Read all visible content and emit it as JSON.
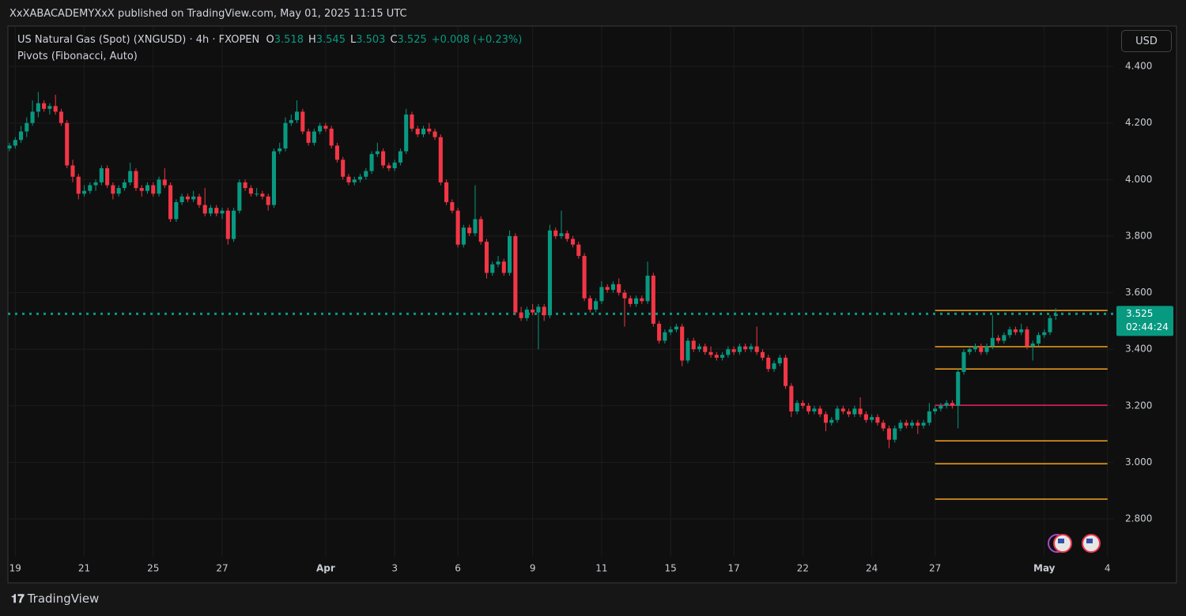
{
  "header": {
    "published": "XxXABACADEMYXxX published on TradingView.com, May 01, 2025 11:15 UTC",
    "logo": "TradingView"
  },
  "chart_data": {
    "type": "candlestick",
    "symbol": "US Natural Gas (Spot) (XNGUSD) · 4h · FXOPEN",
    "indicator": "Pivots (Fibonacci, Auto)",
    "ohlc_labels": [
      "O",
      "H",
      "L",
      "C"
    ],
    "change": "+0.008 (+0.23%)",
    "currency": "USD",
    "countdown": "02:44:24",
    "up_color": "#089981",
    "down_color": "#f23645",
    "grid": true,
    "xlim": [
      0,
      192
    ],
    "ylim": [
      2.666,
      4.54
    ],
    "yticks": [
      {
        "value": 4.4,
        "label": "4.400"
      },
      {
        "value": 4.2,
        "label": "4.200"
      },
      {
        "value": 4.0,
        "label": "4.000"
      },
      {
        "value": 3.8,
        "label": "3.800"
      },
      {
        "value": 3.6,
        "label": "3.600"
      },
      {
        "value": 3.4,
        "label": "3.400"
      },
      {
        "value": 3.2,
        "label": "3.200"
      },
      {
        "value": 3.0,
        "label": "3.000"
      },
      {
        "value": 2.8,
        "label": "2.800"
      }
    ],
    "xticks": [
      {
        "value": 1,
        "label": "19"
      },
      {
        "value": 13,
        "label": "21"
      },
      {
        "value": 25,
        "label": "25"
      },
      {
        "value": 37,
        "label": "27"
      },
      {
        "value": 55,
        "label": "Apr"
      },
      {
        "value": 67,
        "label": "3"
      },
      {
        "value": 78,
        "label": "6"
      },
      {
        "value": 91,
        "label": "9"
      },
      {
        "value": 103,
        "label": "11"
      },
      {
        "value": 115,
        "label": "15"
      },
      {
        "value": 126,
        "label": "17"
      },
      {
        "value": 138,
        "label": "22"
      },
      {
        "value": 150,
        "label": "24"
      },
      {
        "value": 161,
        "label": "27"
      },
      {
        "value": 180,
        "label": "May"
      },
      {
        "value": 191,
        "label": "4"
      }
    ],
    "pivots": {
      "start": 161,
      "end": 191,
      "levels": [
        3.537,
        3.409,
        3.33,
        3.202,
        3.076,
        2.995,
        2.87
      ],
      "colors": [
        "#f7a21b",
        "#f7a21b",
        "#f7a21b",
        "#e91e63",
        "#f7a21b",
        "#f7a21b",
        "#f7a21b"
      ]
    },
    "candles": [
      [
        4.11,
        4.13,
        4.1,
        4.12
      ],
      [
        4.12,
        4.15,
        4.11,
        4.14
      ],
      [
        4.14,
        4.19,
        4.13,
        4.17
      ],
      [
        4.17,
        4.22,
        4.15,
        4.2
      ],
      [
        4.2,
        4.28,
        4.19,
        4.24
      ],
      [
        4.24,
        4.31,
        4.22,
        4.27
      ],
      [
        4.27,
        4.28,
        4.24,
        4.25
      ],
      [
        4.25,
        4.27,
        4.23,
        4.26
      ],
      [
        4.26,
        4.3,
        4.23,
        4.24
      ],
      [
        4.24,
        4.25,
        4.19,
        4.2
      ],
      [
        4.2,
        4.21,
        4.04,
        4.05
      ],
      [
        4.05,
        4.07,
        3.99,
        4.01
      ],
      [
        4.01,
        4.02,
        3.93,
        3.95
      ],
      [
        3.95,
        3.98,
        3.94,
        3.96
      ],
      [
        3.96,
        3.99,
        3.95,
        3.98
      ],
      [
        3.98,
        4.0,
        3.96,
        3.99
      ],
      [
        3.99,
        4.05,
        3.98,
        4.04
      ],
      [
        4.04,
        4.05,
        3.97,
        3.98
      ],
      [
        3.98,
        3.99,
        3.93,
        3.95
      ],
      [
        3.95,
        3.98,
        3.94,
        3.97
      ],
      [
        3.97,
        4.0,
        3.96,
        3.99
      ],
      [
        3.99,
        4.06,
        3.98,
        4.03
      ],
      [
        4.03,
        4.04,
        3.96,
        3.97
      ],
      [
        3.97,
        3.98,
        3.94,
        3.96
      ],
      [
        3.96,
        3.99,
        3.95,
        3.98
      ],
      [
        3.98,
        3.99,
        3.94,
        3.95
      ],
      [
        3.95,
        4.01,
        3.94,
        4.0
      ],
      [
        4.0,
        4.04,
        3.97,
        3.98
      ],
      [
        3.98,
        3.99,
        3.85,
        3.86
      ],
      [
        3.86,
        3.93,
        3.85,
        3.92
      ],
      [
        3.92,
        3.95,
        3.91,
        3.94
      ],
      [
        3.94,
        3.95,
        3.92,
        3.93
      ],
      [
        3.93,
        3.96,
        3.92,
        3.94
      ],
      [
        3.94,
        3.95,
        3.9,
        3.91
      ],
      [
        3.91,
        3.97,
        3.87,
        3.88
      ],
      [
        3.88,
        3.91,
        3.87,
        3.9
      ],
      [
        3.9,
        3.91,
        3.87,
        3.88
      ],
      [
        3.88,
        3.9,
        3.86,
        3.89
      ],
      [
        3.89,
        3.9,
        3.77,
        3.79
      ],
      [
        3.79,
        3.9,
        3.78,
        3.89
      ],
      [
        3.89,
        4.0,
        3.88,
        3.99
      ],
      [
        3.99,
        4.0,
        3.96,
        3.97
      ],
      [
        3.97,
        3.98,
        3.94,
        3.95
      ],
      [
        3.95,
        3.97,
        3.94,
        3.95
      ],
      [
        3.95,
        3.96,
        3.93,
        3.94
      ],
      [
        3.94,
        3.95,
        3.89,
        3.91
      ],
      [
        3.91,
        4.11,
        3.9,
        4.1
      ],
      [
        4.1,
        4.13,
        4.09,
        4.11
      ],
      [
        4.11,
        4.22,
        4.1,
        4.2
      ],
      [
        4.2,
        4.23,
        4.19,
        4.21
      ],
      [
        4.21,
        4.28,
        4.2,
        4.24
      ],
      [
        4.24,
        4.25,
        4.16,
        4.17
      ],
      [
        4.17,
        4.18,
        4.12,
        4.13
      ],
      [
        4.13,
        4.18,
        4.12,
        4.17
      ],
      [
        4.17,
        4.2,
        4.16,
        4.19
      ],
      [
        4.19,
        4.2,
        4.17,
        4.18
      ],
      [
        4.18,
        4.19,
        4.11,
        4.12
      ],
      [
        4.12,
        4.13,
        4.06,
        4.07
      ],
      [
        4.07,
        4.08,
        4.0,
        4.01
      ],
      [
        4.01,
        4.02,
        3.98,
        3.99
      ],
      [
        3.99,
        4.01,
        3.98,
        4.0
      ],
      [
        4.0,
        4.02,
        3.99,
        4.01
      ],
      [
        4.01,
        4.04,
        4.0,
        4.03
      ],
      [
        4.03,
        4.1,
        4.02,
        4.09
      ],
      [
        4.09,
        4.13,
        4.08,
        4.1
      ],
      [
        4.1,
        4.11,
        4.04,
        4.05
      ],
      [
        4.05,
        4.06,
        4.03,
        4.04
      ],
      [
        4.04,
        4.07,
        4.03,
        4.06
      ],
      [
        4.06,
        4.11,
        4.05,
        4.1
      ],
      [
        4.1,
        4.25,
        4.09,
        4.23
      ],
      [
        4.23,
        4.24,
        4.17,
        4.18
      ],
      [
        4.18,
        4.19,
        4.15,
        4.16
      ],
      [
        4.16,
        4.19,
        4.15,
        4.18
      ],
      [
        4.18,
        4.2,
        4.16,
        4.17
      ],
      [
        4.17,
        4.18,
        4.14,
        4.15
      ],
      [
        4.15,
        4.16,
        3.98,
        3.99
      ],
      [
        3.99,
        4.0,
        3.91,
        3.92
      ],
      [
        3.92,
        3.93,
        3.88,
        3.89
      ],
      [
        3.89,
        3.9,
        3.76,
        3.77
      ],
      [
        3.77,
        3.84,
        3.76,
        3.83
      ],
      [
        3.83,
        3.84,
        3.8,
        3.81
      ],
      [
        3.81,
        3.98,
        3.8,
        3.86
      ],
      [
        3.86,
        3.87,
        3.77,
        3.78
      ],
      [
        3.78,
        3.79,
        3.65,
        3.67
      ],
      [
        3.67,
        3.71,
        3.66,
        3.7
      ],
      [
        3.7,
        3.73,
        3.69,
        3.71
      ],
      [
        3.71,
        3.72,
        3.66,
        3.67
      ],
      [
        3.67,
        3.82,
        3.66,
        3.8
      ],
      [
        3.8,
        3.81,
        3.52,
        3.53
      ],
      [
        3.53,
        3.55,
        3.5,
        3.51
      ],
      [
        3.51,
        3.55,
        3.5,
        3.54
      ],
      [
        3.54,
        3.56,
        3.52,
        3.53
      ],
      [
        3.53,
        3.56,
        3.4,
        3.55
      ],
      [
        3.55,
        3.56,
        3.5,
        3.52
      ],
      [
        3.52,
        3.84,
        3.51,
        3.82
      ],
      [
        3.82,
        3.83,
        3.79,
        3.8
      ],
      [
        3.8,
        3.89,
        3.79,
        3.81
      ],
      [
        3.81,
        3.82,
        3.78,
        3.79
      ],
      [
        3.79,
        3.8,
        3.76,
        3.77
      ],
      [
        3.77,
        3.78,
        3.72,
        3.73
      ],
      [
        3.73,
        3.74,
        3.57,
        3.58
      ],
      [
        3.58,
        3.59,
        3.53,
        3.54
      ],
      [
        3.54,
        3.58,
        3.53,
        3.57
      ],
      [
        3.57,
        3.64,
        3.56,
        3.62
      ],
      [
        3.62,
        3.63,
        3.6,
        3.61
      ],
      [
        3.61,
        3.64,
        3.6,
        3.63
      ],
      [
        3.63,
        3.65,
        3.59,
        3.6
      ],
      [
        3.6,
        3.61,
        3.48,
        3.58
      ],
      [
        3.58,
        3.59,
        3.55,
        3.56
      ],
      [
        3.56,
        3.59,
        3.55,
        3.58
      ],
      [
        3.58,
        3.59,
        3.56,
        3.57
      ],
      [
        3.57,
        3.71,
        3.56,
        3.66
      ],
      [
        3.66,
        3.67,
        3.48,
        3.49
      ],
      [
        3.49,
        3.5,
        3.42,
        3.43
      ],
      [
        3.43,
        3.47,
        3.42,
        3.46
      ],
      [
        3.46,
        3.48,
        3.45,
        3.47
      ],
      [
        3.47,
        3.49,
        3.46,
        3.48
      ],
      [
        3.48,
        3.49,
        3.34,
        3.36
      ],
      [
        3.36,
        3.44,
        3.35,
        3.43
      ],
      [
        3.43,
        3.44,
        3.39,
        3.4
      ],
      [
        3.4,
        3.42,
        3.39,
        3.41
      ],
      [
        3.41,
        3.42,
        3.38,
        3.39
      ],
      [
        3.39,
        3.41,
        3.37,
        3.38
      ],
      [
        3.38,
        3.39,
        3.36,
        3.37
      ],
      [
        3.37,
        3.39,
        3.36,
        3.38
      ],
      [
        3.38,
        3.41,
        3.37,
        3.4
      ],
      [
        3.4,
        3.41,
        3.38,
        3.39
      ],
      [
        3.39,
        3.42,
        3.38,
        3.41
      ],
      [
        3.41,
        3.42,
        3.39,
        3.4
      ],
      [
        3.4,
        3.42,
        3.39,
        3.41
      ],
      [
        3.41,
        3.48,
        3.38,
        3.39
      ],
      [
        3.39,
        3.4,
        3.36,
        3.37
      ],
      [
        3.37,
        3.38,
        3.32,
        3.33
      ],
      [
        3.33,
        3.36,
        3.32,
        3.35
      ],
      [
        3.35,
        3.38,
        3.34,
        3.37
      ],
      [
        3.37,
        3.38,
        3.26,
        3.27
      ],
      [
        3.27,
        3.28,
        3.16,
        3.18
      ],
      [
        3.18,
        3.22,
        3.17,
        3.21
      ],
      [
        3.21,
        3.22,
        3.19,
        3.2
      ],
      [
        3.2,
        3.21,
        3.17,
        3.18
      ],
      [
        3.18,
        3.2,
        3.17,
        3.19
      ],
      [
        3.19,
        3.2,
        3.16,
        3.17
      ],
      [
        3.17,
        3.18,
        3.11,
        3.14
      ],
      [
        3.14,
        3.16,
        3.13,
        3.15
      ],
      [
        3.15,
        3.2,
        3.14,
        3.19
      ],
      [
        3.19,
        3.2,
        3.17,
        3.18
      ],
      [
        3.18,
        3.19,
        3.16,
        3.17
      ],
      [
        3.17,
        3.2,
        3.16,
        3.19
      ],
      [
        3.19,
        3.23,
        3.16,
        3.17
      ],
      [
        3.17,
        3.18,
        3.14,
        3.15
      ],
      [
        3.15,
        3.17,
        3.14,
        3.16
      ],
      [
        3.16,
        3.17,
        3.13,
        3.14
      ],
      [
        3.14,
        3.15,
        3.11,
        3.12
      ],
      [
        3.12,
        3.13,
        3.05,
        3.08
      ],
      [
        3.08,
        3.13,
        3.07,
        3.12
      ],
      [
        3.12,
        3.15,
        3.11,
        3.14
      ],
      [
        3.14,
        3.15,
        3.12,
        3.13
      ],
      [
        3.13,
        3.15,
        3.12,
        3.14
      ],
      [
        3.14,
        3.15,
        3.1,
        3.13
      ],
      [
        3.13,
        3.15,
        3.12,
        3.14
      ],
      [
        3.14,
        3.21,
        3.13,
        3.18
      ],
      [
        3.18,
        3.2,
        3.17,
        3.19
      ],
      [
        3.19,
        3.21,
        3.18,
        3.2
      ],
      [
        3.2,
        3.22,
        3.19,
        3.21
      ],
      [
        3.21,
        3.22,
        3.19,
        3.2
      ],
      [
        3.2,
        3.33,
        3.12,
        3.32
      ],
      [
        3.32,
        3.4,
        3.31,
        3.39
      ],
      [
        3.39,
        3.41,
        3.38,
        3.4
      ],
      [
        3.4,
        3.42,
        3.39,
        3.41
      ],
      [
        3.41,
        3.42,
        3.38,
        3.39
      ],
      [
        3.39,
        3.42,
        3.38,
        3.41
      ],
      [
        3.41,
        3.52,
        3.4,
        3.44
      ],
      [
        3.44,
        3.45,
        3.42,
        3.43
      ],
      [
        3.43,
        3.46,
        3.42,
        3.45
      ],
      [
        3.45,
        3.48,
        3.44,
        3.47
      ],
      [
        3.47,
        3.48,
        3.45,
        3.46
      ],
      [
        3.46,
        3.49,
        3.45,
        3.47
      ],
      [
        3.47,
        3.48,
        3.4,
        3.41
      ],
      [
        3.41,
        3.43,
        3.36,
        3.42
      ],
      [
        3.42,
        3.46,
        3.41,
        3.45
      ],
      [
        3.45,
        3.47,
        3.44,
        3.46
      ],
      [
        3.46,
        3.52,
        3.45,
        3.51
      ],
      [
        3.518,
        3.545,
        3.503,
        3.525
      ]
    ]
  }
}
